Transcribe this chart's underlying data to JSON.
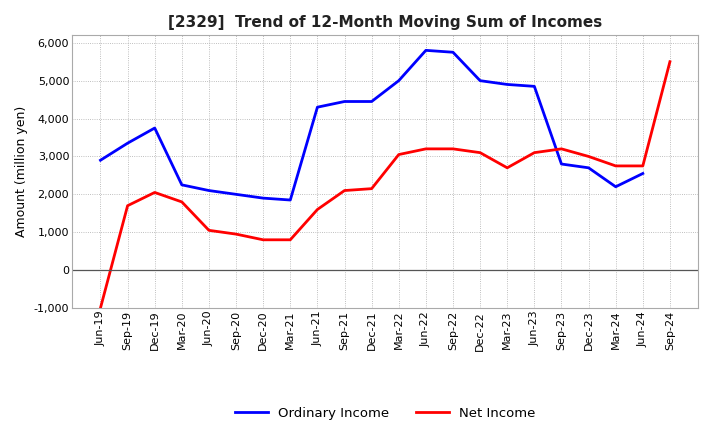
{
  "title": "[2329]  Trend of 12-Month Moving Sum of Incomes",
  "ylabel": "Amount (million yen)",
  "ylim": [
    -1000,
    6200
  ],
  "yticks": [
    -1000,
    0,
    1000,
    2000,
    3000,
    4000,
    5000,
    6000
  ],
  "background_color": "#ffffff",
  "grid_color": "#aaaaaa",
  "x_labels": [
    "Jun-19",
    "Sep-19",
    "Dec-19",
    "Mar-20",
    "Jun-20",
    "Sep-20",
    "Dec-20",
    "Mar-21",
    "Jun-21",
    "Sep-21",
    "Dec-21",
    "Mar-22",
    "Jun-22",
    "Sep-22",
    "Dec-22",
    "Mar-23",
    "Jun-23",
    "Sep-23",
    "Dec-23",
    "Mar-24",
    "Jun-24",
    "Sep-24"
  ],
  "ordinary_income": [
    2900,
    3350,
    3750,
    2250,
    2100,
    2000,
    1900,
    1850,
    4300,
    4450,
    4450,
    5000,
    5800,
    5750,
    5000,
    4900,
    4850,
    2800,
    2700,
    2200,
    2550,
    null
  ],
  "net_income": [
    -1000,
    1700,
    2050,
    1800,
    1050,
    950,
    800,
    800,
    1600,
    2100,
    2150,
    3050,
    3200,
    3200,
    3100,
    2700,
    3100,
    3200,
    3000,
    2750,
    2750,
    5500
  ],
  "ordinary_color": "#0000ff",
  "net_color": "#ff0000",
  "line_width": 2.0,
  "legend_ordinary": "Ordinary Income",
  "legend_net": "Net Income",
  "title_fontsize": 11,
  "axis_fontsize": 9,
  "tick_fontsize": 8
}
